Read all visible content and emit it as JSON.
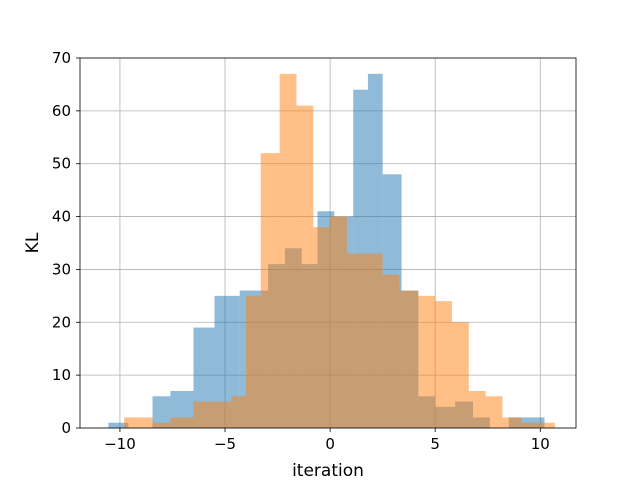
{
  "chart_data": {
    "type": "bar",
    "chart_kind": "overlapping histograms",
    "xlabel": "iteration",
    "ylabel": "KL",
    "xlim": [
      -11.9,
      11.7
    ],
    "ylim": [
      0,
      70
    ],
    "x_ticks": [
      {
        "value": -10,
        "label": "−10"
      },
      {
        "value": -5,
        "label": "−5"
      },
      {
        "value": 0,
        "label": "0"
      },
      {
        "value": 5,
        "label": "5"
      },
      {
        "value": 10,
        "label": "10"
      }
    ],
    "y_ticks": [
      {
        "value": 0,
        "label": "0"
      },
      {
        "value": 10,
        "label": "10"
      },
      {
        "value": 20,
        "label": "20"
      },
      {
        "value": 30,
        "label": "30"
      },
      {
        "value": 40,
        "label": "40"
      },
      {
        "value": 50,
        "label": "50"
      },
      {
        "value": 60,
        "label": "60"
      },
      {
        "value": 70,
        "label": "70"
      }
    ],
    "grid": true,
    "legend": "none",
    "series": [
      {
        "color": "#1f77b4",
        "opacity": 0.5,
        "bin_edges": [
          -10.55,
          -9.6,
          -8.45,
          -7.6,
          -6.5,
          -5.5,
          -4.3,
          -2.95,
          -2.15,
          -1.35,
          -0.6,
          0.2,
          1.1,
          1.8,
          2.5,
          3.4,
          4.2,
          5.0,
          5.95,
          6.8,
          7.6,
          8.5,
          9.3,
          10.2
        ],
        "counts": [
          1,
          0,
          6,
          7,
          19,
          25,
          26,
          31,
          34,
          31,
          41,
          40,
          64,
          67,
          48,
          26,
          6,
          4,
          5,
          2,
          0,
          2,
          2
        ]
      },
      {
        "color": "#ff7f0e",
        "opacity": 0.5,
        "bin_edges": [
          -9.8,
          -9.4,
          -8.45,
          -7.6,
          -6.5,
          -4.7,
          -4.0,
          -3.3,
          -2.4,
          -1.6,
          -0.8,
          0.0,
          0.8,
          1.6,
          2.5,
          3.3,
          4.2,
          5.0,
          5.8,
          6.6,
          7.4,
          8.2,
          9.1,
          9.9,
          10.7
        ],
        "counts": [
          2,
          2,
          1,
          2,
          5,
          6,
          25,
          52,
          67,
          61,
          38,
          40,
          33,
          33,
          29,
          26,
          25,
          24,
          20,
          7,
          6,
          2,
          1,
          1
        ]
      }
    ]
  }
}
